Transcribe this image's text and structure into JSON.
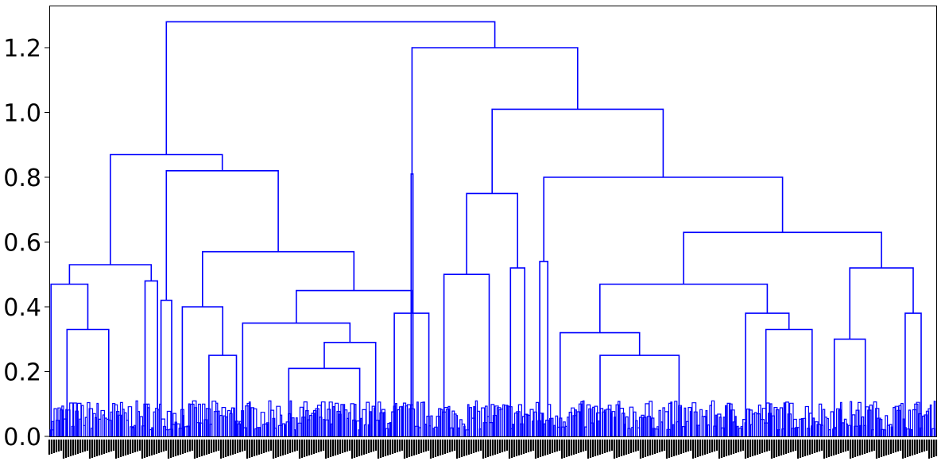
{
  "chart_data": {
    "type": "dendrogram",
    "title": "",
    "xlabel": "",
    "ylabel": "",
    "ylim": [
      0.0,
      1.33
    ],
    "yticks": [
      0.0,
      0.2,
      0.4,
      0.6,
      0.8,
      1.0,
      1.2
    ],
    "ytick_labels": [
      "0.0",
      "0.2",
      "0.4",
      "0.6",
      "0.8",
      "1.0",
      "1.2"
    ],
    "grid": false,
    "link_color": "#0000ff",
    "leaf_label_color": "#000000",
    "x_domain": [
      0,
      1000
    ],
    "merges": [
      {
        "id": "A",
        "height": 1.28,
        "left": "B",
        "right": "C"
      },
      {
        "id": "B",
        "height": 0.87,
        "left": "D",
        "right": "E"
      },
      {
        "id": "D",
        "height": 0.53,
        "left": "F",
        "right": "G"
      },
      {
        "id": "F",
        "height": 0.47,
        "left_leaf": 2,
        "right": "H"
      },
      {
        "id": "H",
        "height": 0.33,
        "left_leaf": 20,
        "right_leaf": 67
      },
      {
        "id": "G",
        "height": 0.48,
        "left_leaf": 108,
        "right_leaf": 122
      },
      {
        "id": "E",
        "height": 0.82,
        "left": "I",
        "right": "J"
      },
      {
        "id": "I",
        "height": 0.42,
        "left_leaf": 126,
        "right_leaf": 138
      },
      {
        "id": "J",
        "height": 0.57,
        "left": "K",
        "right": "L"
      },
      {
        "id": "K",
        "height": 0.4,
        "left_leaf": 150,
        "right": "M"
      },
      {
        "id": "M",
        "height": 0.25,
        "left_leaf": 180,
        "right_leaf": 211
      },
      {
        "id": "L",
        "height": 0.45,
        "left": "N",
        "right": "O"
      },
      {
        "id": "N",
        "height": 0.35,
        "left_leaf": 218,
        "right": "P"
      },
      {
        "id": "P",
        "height": 0.29,
        "left": "Q",
        "right_leaf": 368
      },
      {
        "id": "Q",
        "height": 0.21,
        "left_leaf": 270,
        "right_leaf": 350
      },
      {
        "id": "O",
        "height": 0.38,
        "left_leaf": 389,
        "right_leaf": 428
      },
      {
        "id": "C",
        "height": 1.2,
        "left": "R",
        "right": "S"
      },
      {
        "id": "R",
        "height": 0.81,
        "left_leaf": 408,
        "right_leaf": 410
      },
      {
        "id": "S",
        "height": 1.01,
        "left": "T",
        "right": "U"
      },
      {
        "id": "T",
        "height": 0.75,
        "left": "V",
        "right": "W"
      },
      {
        "id": "V",
        "height": 0.5,
        "left_leaf": 445,
        "right_leaf": 496
      },
      {
        "id": "W",
        "height": 0.52,
        "left_leaf": 520,
        "right_leaf": 536
      },
      {
        "id": "U",
        "height": 0.8,
        "left": "X",
        "right": "Y"
      },
      {
        "id": "X",
        "height": 0.54,
        "left_leaf": 553,
        "right_leaf": 562
      },
      {
        "id": "Y",
        "height": 0.63,
        "left": "Z",
        "right": "AA"
      },
      {
        "id": "Z",
        "height": 0.47,
        "left": "AB",
        "right": "AC"
      },
      {
        "id": "AB",
        "height": 0.32,
        "left_leaf": 576,
        "right": "AD"
      },
      {
        "id": "AD",
        "height": 0.25,
        "left_leaf": 621,
        "right_leaf": 710
      },
      {
        "id": "AC",
        "height": 0.38,
        "left_leaf": 785,
        "right": "AE"
      },
      {
        "id": "AE",
        "height": 0.33,
        "left_leaf": 808,
        "right_leaf": 860
      },
      {
        "id": "AA",
        "height": 0.52,
        "left": "AF",
        "right": "AG"
      },
      {
        "id": "AF",
        "height": 0.3,
        "left_leaf": 885,
        "right_leaf": 920
      },
      {
        "id": "AG",
        "height": 0.38,
        "left_leaf": 965,
        "right_leaf": 983
      }
    ]
  }
}
